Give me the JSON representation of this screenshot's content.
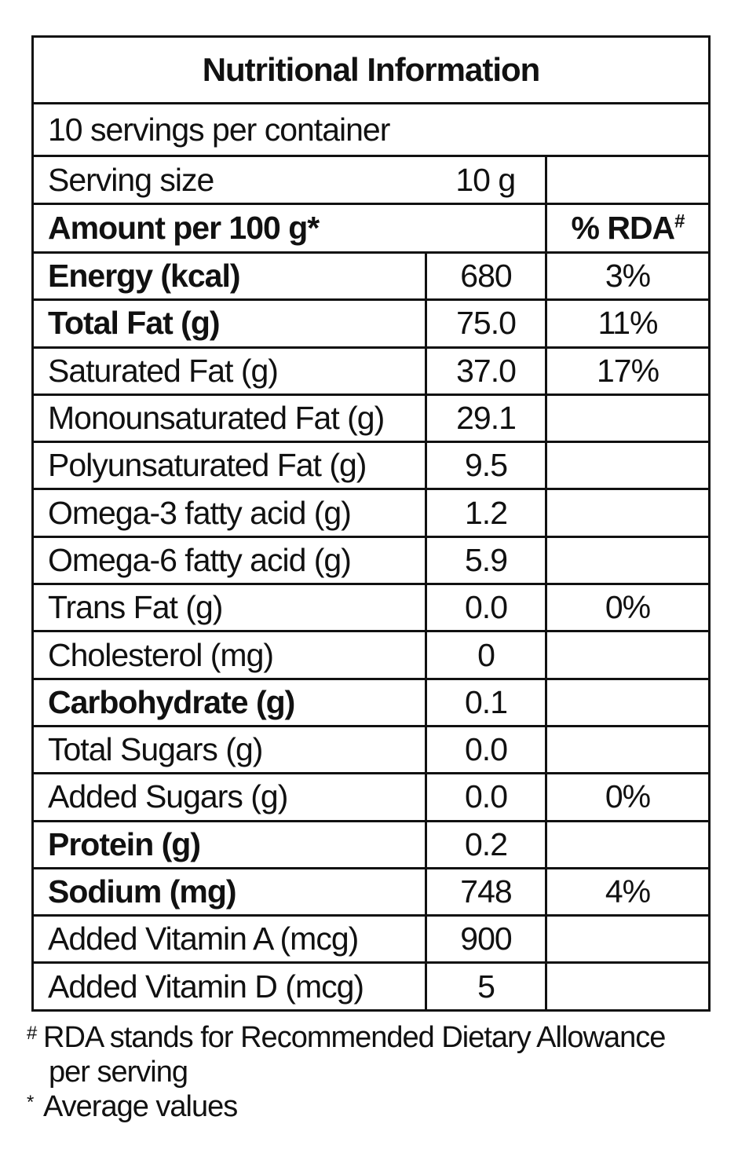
{
  "title": "Nutritional Information",
  "servings": "10 servings per container",
  "serving_size": {
    "label": "Serving size",
    "value": "10 g"
  },
  "header": {
    "amount": "Amount per 100 g*",
    "rda": "% RDA",
    "rda_mark": "#"
  },
  "rows": [
    {
      "name": "Energy (kcal)",
      "amount": "680",
      "rda": "3%",
      "bold": true
    },
    {
      "name": "Total Fat (g)",
      "amount": "75.0",
      "rda": "11%",
      "bold": true
    },
    {
      "name": "Saturated Fat (g)",
      "amount": "37.0",
      "rda": "17%",
      "bold": false
    },
    {
      "name": "Monounsaturated Fat (g)",
      "amount": "29.1",
      "rda": null,
      "bold": false
    },
    {
      "name": "Polyunsaturated Fat (g)",
      "amount": "9.5",
      "rda": null,
      "bold": false
    },
    {
      "name": "Omega-3 fatty acid (g)",
      "amount": "1.2",
      "rda": null,
      "bold": false
    },
    {
      "name": "Omega-6 fatty acid (g)",
      "amount": "5.9",
      "rda": null,
      "bold": false
    },
    {
      "name": "Trans Fat (g)",
      "amount": "0.0",
      "rda": "0%",
      "bold": false
    },
    {
      "name": "Cholesterol (mg)",
      "amount": "0",
      "rda": null,
      "bold": false
    },
    {
      "name": "Carbohydrate (g)",
      "amount": "0.1",
      "rda": null,
      "bold": true
    },
    {
      "name": "Total Sugars (g)",
      "amount": "0.0",
      "rda": null,
      "bold": false
    },
    {
      "name": "Added Sugars (g)",
      "amount": "0.0",
      "rda": "0%",
      "bold": false
    },
    {
      "name": "Protein (g)",
      "amount": "0.2",
      "rda": null,
      "bold": true
    },
    {
      "name": "Sodium (mg)",
      "amount": "748",
      "rda": "4%",
      "bold": true
    },
    {
      "name": "Added Vitamin A (mcg)",
      "amount": "900",
      "rda": null,
      "bold": false
    },
    {
      "name": "Added Vitamin D (mcg)",
      "amount": "5",
      "rda": null,
      "bold": false
    }
  ],
  "footnotes": [
    {
      "mark": "#",
      "lines": [
        "RDA stands for Recommended Dietary Allowance",
        "per serving"
      ]
    },
    {
      "mark": "*",
      "lines": [
        "Average values"
      ]
    }
  ]
}
